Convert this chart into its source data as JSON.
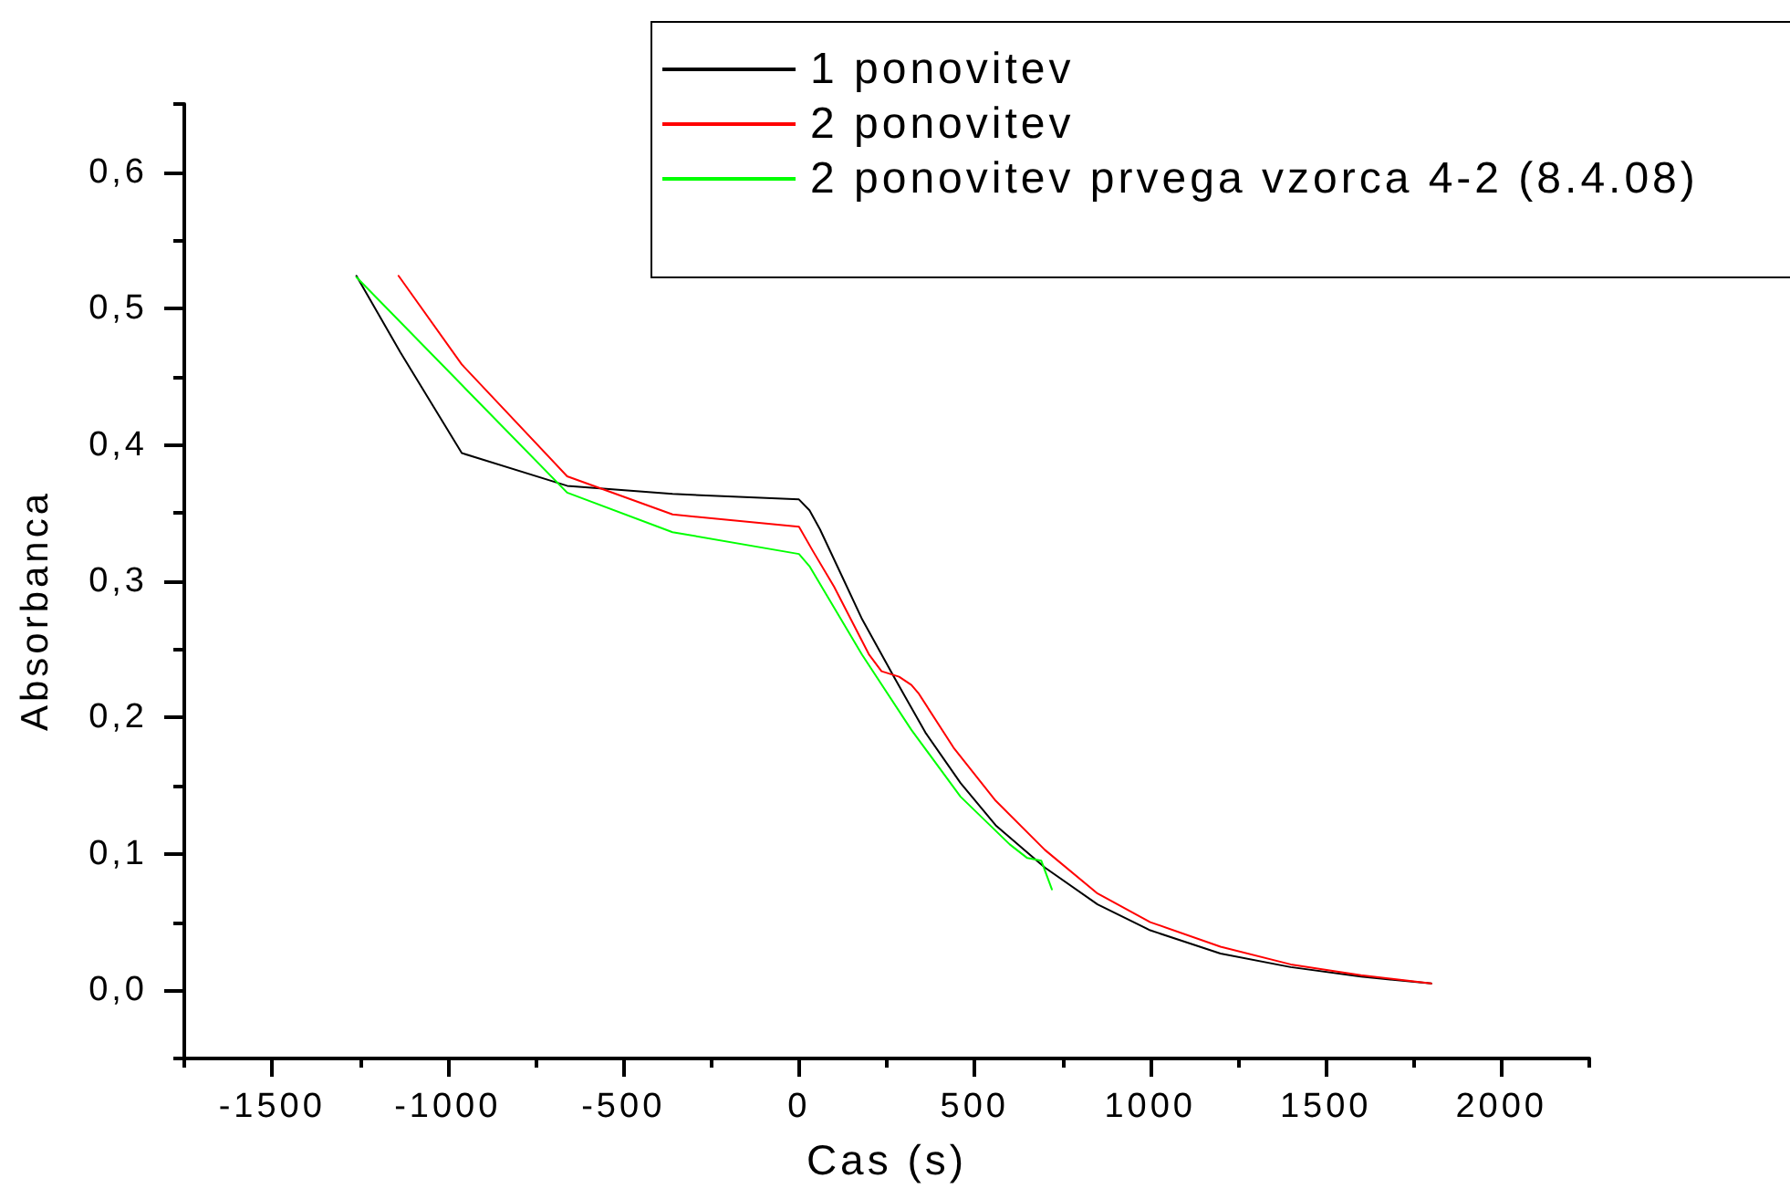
{
  "chart_data": {
    "type": "line",
    "xlabel": "Cas (s)",
    "ylabel": "Absorbanca",
    "xlim": [
      -1750,
      2250
    ],
    "ylim": [
      -0.05,
      0.65
    ],
    "xticks": [
      {
        "value": -1750,
        "label": null
      },
      -1500,
      {
        "value": -1250,
        "label": null
      },
      -1000,
      {
        "value": -750,
        "label": null
      },
      -500,
      {
        "value": -250,
        "label": null
      },
      0,
      {
        "value": 250,
        "label": null
      },
      500,
      {
        "value": 750,
        "label": null
      },
      1000,
      {
        "value": 1250,
        "label": null
      },
      1500,
      {
        "value": 1750,
        "label": null
      },
      2000,
      {
        "value": 2250,
        "label": null
      }
    ],
    "yticks": [
      {
        "value": -0.05,
        "label": null
      },
      {
        "value": 0,
        "label": "0,0"
      },
      {
        "value": 0.05,
        "label": null
      },
      {
        "value": 0.1,
        "label": "0,1"
      },
      {
        "value": 0.15,
        "label": null
      },
      {
        "value": 0.2,
        "label": "0,2"
      },
      {
        "value": 0.25,
        "label": null
      },
      {
        "value": 0.3,
        "label": "0,3"
      },
      {
        "value": 0.35,
        "label": null
      },
      {
        "value": 0.4,
        "label": "0,4"
      },
      {
        "value": 0.45,
        "label": null
      },
      {
        "value": 0.5,
        "label": "0,5"
      },
      {
        "value": 0.55,
        "label": null
      },
      {
        "value": 0.6,
        "label": "0,6"
      },
      {
        "value": 0.65,
        "label": null
      }
    ],
    "grid": false,
    "legend": "top right",
    "marker": "none",
    "line_style": "solid",
    "series": [
      {
        "name": "1 ponovitev",
        "color": "#000000",
        "x": [
          -1260,
          -1135,
          -960,
          -660,
          -360,
          0,
          30,
          60,
          120,
          180,
          270,
          360,
          460,
          560,
          700,
          850,
          1000,
          1200,
          1400,
          1600,
          1800
        ],
        "values": [
          0.524,
          0.468,
          0.394,
          0.37,
          0.364,
          0.36,
          0.352,
          0.338,
          0.305,
          0.272,
          0.23,
          0.189,
          0.152,
          0.121,
          0.09,
          0.063,
          0.044,
          0.027,
          0.017,
          0.01,
          0.005
        ]
      },
      {
        "name": "2 ponovitev",
        "color": "#ff0000",
        "x": [
          -1140,
          -960,
          -660,
          -360,
          0,
          40,
          100,
          200,
          235,
          285,
          320,
          340,
          440,
          560,
          700,
          850,
          1000,
          1200,
          1400,
          1600,
          1800
        ],
        "values": [
          0.524,
          0.459,
          0.377,
          0.349,
          0.34,
          0.322,
          0.296,
          0.246,
          0.234,
          0.23,
          0.224,
          0.218,
          0.178,
          0.139,
          0.103,
          0.071,
          0.05,
          0.032,
          0.019,
          0.011,
          0.005
        ]
      },
      {
        "name": "2 ponovitev prvega vzorca 4-2 (8.4.08)",
        "color": "#00ff00",
        "x": [
          -1260,
          -960,
          -660,
          -360,
          0,
          30,
          60,
          180,
          320,
          460,
          600,
          650,
          690,
          720
        ],
        "values": [
          0.523,
          0.444,
          0.365,
          0.336,
          0.32,
          0.311,
          0.298,
          0.246,
          0.191,
          0.142,
          0.107,
          0.097,
          0.095,
          0.074
        ]
      }
    ]
  }
}
